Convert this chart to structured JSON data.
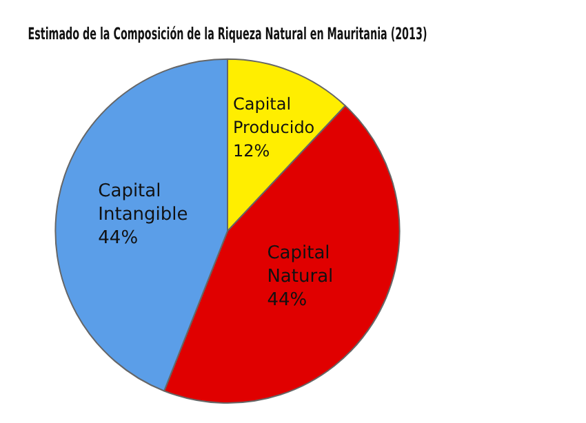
{
  "chart_data": {
    "type": "pie",
    "title": "Estimado de la Composición de la Riqueza Natural en Mauritania (2013)",
    "categories": [
      "Capital Producido",
      "Capital Natural",
      "Capital Intangible"
    ],
    "values": [
      12,
      44,
      44
    ],
    "value_labels": [
      "12%",
      "44%",
      "44%"
    ],
    "colors": [
      "#ffee00",
      "#e00000",
      "#5b9ee8"
    ],
    "legend": false
  }
}
